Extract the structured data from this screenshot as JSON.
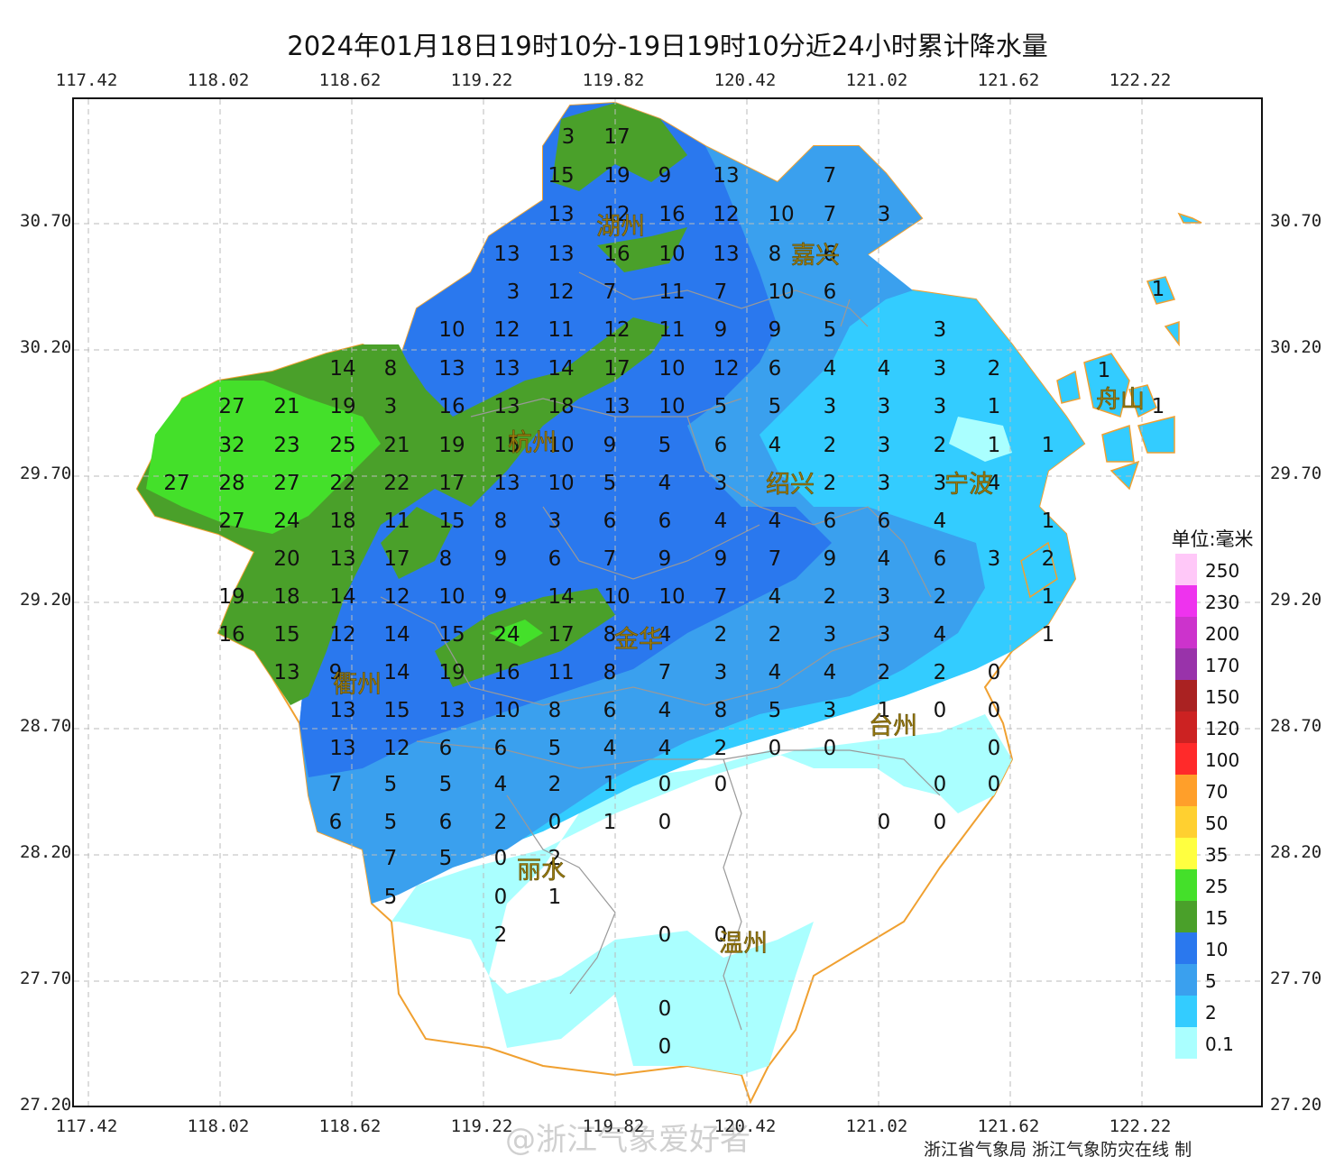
{
  "title": "2024年01月18日19时10分-19日19时10分近24小时累计降水量",
  "lon_ticks": [
    "117.42",
    "118.02",
    "118.62",
    "119.22",
    "119.82",
    "120.42",
    "121.02",
    "121.62",
    "122.22"
  ],
  "lat_ticks": [
    "30.70",
    "30.20",
    "29.70",
    "29.20",
    "28.70",
    "28.20",
    "27.70",
    "27.20"
  ],
  "legend": {
    "title": "单位:毫米",
    "items": [
      {
        "label": "250",
        "color": "#ffc8f8"
      },
      {
        "label": "230",
        "color": "#ee33ee"
      },
      {
        "label": "200",
        "color": "#cc33cc"
      },
      {
        "label": "170",
        "color": "#9933aa"
      },
      {
        "label": "150",
        "color": "#aa2222"
      },
      {
        "label": "120",
        "color": "#cc2222"
      },
      {
        "label": "100",
        "color": "#ff2a2a"
      },
      {
        "label": "70",
        "color": "#ff9f2a"
      },
      {
        "label": "50",
        "color": "#ffd030"
      },
      {
        "label": "35",
        "color": "#ffff40"
      },
      {
        "label": "25",
        "color": "#44e02a"
      },
      {
        "label": "15",
        "color": "#4aa02a"
      },
      {
        "label": "10",
        "color": "#2a78ee"
      },
      {
        "label": "5",
        "color": "#3aa0ee"
      },
      {
        "label": "2",
        "color": "#33ccff"
      },
      {
        "label": "0.1",
        "color": "#aaffff"
      }
    ]
  },
  "cities": [
    "湖州",
    "嘉兴",
    "杭州",
    "绍兴",
    "宁波",
    "舟山",
    "金华",
    "衢州",
    "台州",
    "丽水",
    "温州"
  ],
  "stations": [
    [
      "3",
      628,
      148
    ],
    [
      "17",
      682,
      148
    ],
    [
      "15",
      620,
      191
    ],
    [
      "19",
      682,
      191
    ],
    [
      "9",
      735,
      191
    ],
    [
      "13",
      803,
      191
    ],
    [
      "7",
      918,
      191
    ],
    [
      "13",
      620,
      234
    ],
    [
      "12",
      682,
      234
    ],
    [
      "16",
      743,
      234
    ],
    [
      "12",
      803,
      234
    ],
    [
      "10",
      864,
      234
    ],
    [
      "7",
      918,
      234
    ],
    [
      "3",
      978,
      234
    ],
    [
      "13",
      560,
      278
    ],
    [
      "13",
      620,
      278
    ],
    [
      "16",
      682,
      278
    ],
    [
      "10",
      743,
      278
    ],
    [
      "13",
      803,
      278
    ],
    [
      "8",
      857,
      278
    ],
    [
      "6",
      918,
      278
    ],
    [
      "3",
      567,
      320
    ],
    [
      "12",
      620,
      320
    ],
    [
      "7",
      674,
      320
    ],
    [
      "11",
      743,
      320
    ],
    [
      "7",
      797,
      320
    ],
    [
      "10",
      864,
      320
    ],
    [
      "6",
      918,
      320
    ],
    [
      "1",
      1282,
      317
    ],
    [
      "10",
      499,
      362
    ],
    [
      "12",
      560,
      362
    ],
    [
      "11",
      620,
      362
    ],
    [
      "12",
      682,
      362
    ],
    [
      "11",
      743,
      362
    ],
    [
      "9",
      797,
      362
    ],
    [
      "9",
      857,
      362
    ],
    [
      "5",
      918,
      362
    ],
    [
      "3",
      1040,
      362
    ],
    [
      "14",
      378,
      405
    ],
    [
      "8",
      431,
      405
    ],
    [
      "13",
      499,
      405
    ],
    [
      "13",
      560,
      405
    ],
    [
      "14",
      620,
      405
    ],
    [
      "17",
      682,
      405
    ],
    [
      "10",
      743,
      405
    ],
    [
      "12",
      803,
      405
    ],
    [
      "6",
      857,
      405
    ],
    [
      "4",
      918,
      405
    ],
    [
      "4",
      978,
      405
    ],
    [
      "3",
      1040,
      405
    ],
    [
      "2",
      1100,
      405
    ],
    [
      "1",
      1222,
      407
    ],
    [
      "27",
      255,
      447
    ],
    [
      "21",
      316,
      447
    ],
    [
      "19",
      378,
      447
    ],
    [
      "3",
      431,
      447
    ],
    [
      "16",
      499,
      447
    ],
    [
      "13",
      560,
      447
    ],
    [
      "18",
      620,
      447
    ],
    [
      "13",
      682,
      447
    ],
    [
      "10",
      743,
      447
    ],
    [
      "5",
      797,
      447
    ],
    [
      "5",
      857,
      447
    ],
    [
      "3",
      918,
      447
    ],
    [
      "3",
      978,
      447
    ],
    [
      "3",
      1040,
      447
    ],
    [
      "1",
      1100,
      447
    ],
    [
      "1",
      1282,
      447
    ],
    [
      "32",
      255,
      490
    ],
    [
      "23",
      316,
      490
    ],
    [
      "25",
      378,
      490
    ],
    [
      "21",
      438,
      490
    ],
    [
      "19",
      499,
      490
    ],
    [
      "15",
      560,
      490
    ],
    [
      "10",
      620,
      490
    ],
    [
      "9",
      674,
      490
    ],
    [
      "5",
      735,
      490
    ],
    [
      "6",
      797,
      490
    ],
    [
      "4",
      857,
      490
    ],
    [
      "2",
      918,
      490
    ],
    [
      "3",
      978,
      490
    ],
    [
      "2",
      1040,
      490
    ],
    [
      "1",
      1100,
      490
    ],
    [
      "1",
      1160,
      490
    ],
    [
      "27",
      194,
      532
    ],
    [
      "28",
      255,
      532
    ],
    [
      "27",
      316,
      532
    ],
    [
      "22",
      378,
      532
    ],
    [
      "22",
      438,
      532
    ],
    [
      "17",
      499,
      532
    ],
    [
      "13",
      560,
      532
    ],
    [
      "10",
      620,
      532
    ],
    [
      "5",
      674,
      532
    ],
    [
      "4",
      735,
      532
    ],
    [
      "3",
      797,
      532
    ],
    [
      "2",
      918,
      532
    ],
    [
      "3",
      978,
      532
    ],
    [
      "3",
      1040,
      532
    ],
    [
      "4",
      1100,
      532
    ],
    [
      "27",
      255,
      574
    ],
    [
      "24",
      316,
      574
    ],
    [
      "18",
      378,
      574
    ],
    [
      "11",
      438,
      574
    ],
    [
      "15",
      499,
      574
    ],
    [
      "8",
      553,
      574
    ],
    [
      "3",
      613,
      574
    ],
    [
      "6",
      674,
      574
    ],
    [
      "6",
      735,
      574
    ],
    [
      "4",
      797,
      574
    ],
    [
      "4",
      857,
      574
    ],
    [
      "6",
      918,
      574
    ],
    [
      "6",
      978,
      574
    ],
    [
      "4",
      1040,
      574
    ],
    [
      "1",
      1160,
      574
    ],
    [
      "20",
      316,
      616
    ],
    [
      "13",
      378,
      616
    ],
    [
      "17",
      438,
      616
    ],
    [
      "8",
      492,
      616
    ],
    [
      "9",
      553,
      616
    ],
    [
      "6",
      613,
      616
    ],
    [
      "7",
      674,
      616
    ],
    [
      "9",
      735,
      616
    ],
    [
      "9",
      797,
      616
    ],
    [
      "7",
      857,
      616
    ],
    [
      "9",
      918,
      616
    ],
    [
      "4",
      978,
      616
    ],
    [
      "6",
      1040,
      616
    ],
    [
      "3",
      1100,
      616
    ],
    [
      "2",
      1160,
      616
    ],
    [
      "19",
      255,
      658
    ],
    [
      "18",
      316,
      658
    ],
    [
      "14",
      378,
      658
    ],
    [
      "12",
      438,
      658
    ],
    [
      "10",
      499,
      658
    ],
    [
      "9",
      553,
      658
    ],
    [
      "14",
      620,
      658
    ],
    [
      "10",
      682,
      658
    ],
    [
      "10",
      743,
      658
    ],
    [
      "7",
      797,
      658
    ],
    [
      "4",
      857,
      658
    ],
    [
      "2",
      918,
      658
    ],
    [
      "3",
      978,
      658
    ],
    [
      "2",
      1040,
      658
    ],
    [
      "1",
      1160,
      658
    ],
    [
      "16",
      255,
      700
    ],
    [
      "15",
      316,
      700
    ],
    [
      "12",
      378,
      700
    ],
    [
      "14",
      438,
      700
    ],
    [
      "15",
      499,
      700
    ],
    [
      "24",
      560,
      700
    ],
    [
      "17",
      620,
      700
    ],
    [
      "8",
      674,
      700
    ],
    [
      "4",
      735,
      700
    ],
    [
      "2",
      797,
      700
    ],
    [
      "2",
      857,
      700
    ],
    [
      "3",
      918,
      700
    ],
    [
      "3",
      978,
      700
    ],
    [
      "4",
      1040,
      700
    ],
    [
      "1",
      1160,
      700
    ],
    [
      "13",
      316,
      742
    ],
    [
      "9",
      370,
      742
    ],
    [
      "14",
      438,
      742
    ],
    [
      "19",
      499,
      742
    ],
    [
      "16",
      560,
      742
    ],
    [
      "11",
      620,
      742
    ],
    [
      "8",
      674,
      742
    ],
    [
      "7",
      735,
      742
    ],
    [
      "3",
      797,
      742
    ],
    [
      "4",
      857,
      742
    ],
    [
      "4",
      918,
      742
    ],
    [
      "2",
      978,
      742
    ],
    [
      "2",
      1040,
      742
    ],
    [
      "0",
      1100,
      742
    ],
    [
      "13",
      378,
      784
    ],
    [
      "15",
      438,
      784
    ],
    [
      "13",
      499,
      784
    ],
    [
      "10",
      560,
      784
    ],
    [
      "8",
      613,
      784
    ],
    [
      "6",
      674,
      784
    ],
    [
      "4",
      735,
      784
    ],
    [
      "8",
      797,
      784
    ],
    [
      "5",
      857,
      784
    ],
    [
      "3",
      918,
      784
    ],
    [
      "1",
      978,
      784
    ],
    [
      "0",
      1040,
      784
    ],
    [
      "0",
      1100,
      784
    ],
    [
      "13",
      378,
      826
    ],
    [
      "12",
      438,
      826
    ],
    [
      "6",
      492,
      826
    ],
    [
      "6",
      553,
      826
    ],
    [
      "5",
      613,
      826
    ],
    [
      "4",
      674,
      826
    ],
    [
      "4",
      735,
      826
    ],
    [
      "2",
      797,
      826
    ],
    [
      "0",
      857,
      826
    ],
    [
      "0",
      918,
      826
    ],
    [
      "0",
      1100,
      826
    ],
    [
      "7",
      370,
      866
    ],
    [
      "5",
      431,
      866
    ],
    [
      "5",
      492,
      866
    ],
    [
      "4",
      553,
      866
    ],
    [
      "2",
      613,
      866
    ],
    [
      "1",
      674,
      866
    ],
    [
      "0",
      735,
      866
    ],
    [
      "0",
      797,
      866
    ],
    [
      "0",
      1040,
      866
    ],
    [
      "0",
      1100,
      866
    ],
    [
      "6",
      370,
      908
    ],
    [
      "5",
      431,
      908
    ],
    [
      "6",
      492,
      908
    ],
    [
      "2",
      553,
      908
    ],
    [
      "0",
      613,
      908
    ],
    [
      "1",
      674,
      908
    ],
    [
      "0",
      735,
      908
    ],
    [
      "0",
      978,
      908
    ],
    [
      "0",
      1040,
      908
    ],
    [
      "7",
      431,
      948
    ],
    [
      "5",
      492,
      948
    ],
    [
      "0",
      553,
      948
    ],
    [
      "2",
      613,
      948
    ],
    [
      "5",
      431,
      991
    ],
    [
      "0",
      553,
      991
    ],
    [
      "1",
      613,
      991
    ],
    [
      "2",
      553,
      1033
    ],
    [
      "0",
      735,
      1033
    ],
    [
      "0",
      797,
      1033
    ],
    [
      "0",
      735,
      1115
    ],
    [
      "0",
      735,
      1157
    ]
  ],
  "credit": "浙江省气象局   浙江气象防灾在线 制",
  "watermark": "@浙江气象爱好者"
}
